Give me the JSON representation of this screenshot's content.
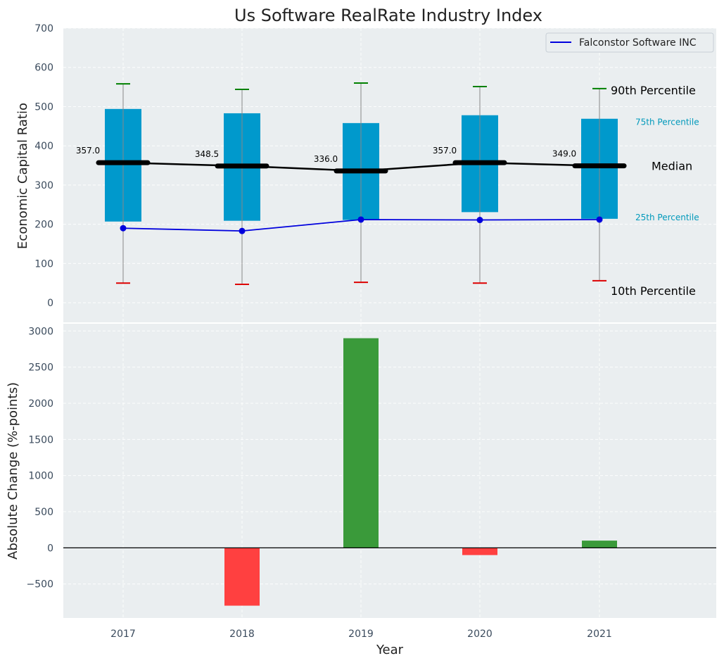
{
  "chart_data": [
    {
      "type": "box",
      "title": "Us Software RealRate Industry Index",
      "ylabel": "Economic Capital Ratio",
      "ylim": [
        -50,
        700
      ],
      "yticks": [
        0,
        100,
        200,
        300,
        400,
        500,
        600,
        700
      ],
      "categories": [
        "2017",
        "2018",
        "2019",
        "2020",
        "2021"
      ],
      "p10": [
        50,
        47,
        52,
        50,
        56
      ],
      "p25": [
        207,
        209,
        211,
        231,
        214
      ],
      "median": [
        357.0,
        348.5,
        336.0,
        357.0,
        349.0
      ],
      "median_labels": [
        "357.0",
        "348.5",
        "336.0",
        "357.0",
        "349.0"
      ],
      "p75": [
        494,
        483,
        458,
        478,
        469
      ],
      "p90": [
        558,
        544,
        560,
        551,
        546
      ],
      "company": {
        "name": "Falconstor Software INC",
        "values": [
          190,
          183,
          212,
          211,
          212
        ]
      },
      "annotations": {
        "p90": "90th Percentile",
        "p75": "75th Percentile",
        "median": "Median",
        "p25": "25th Percentile",
        "p10": "10th Percentile"
      },
      "legend_position": "top-right",
      "grid": true
    },
    {
      "type": "bar",
      "xlabel": "Year",
      "ylabel": "Absolute Change (%-points)",
      "ylim": [
        -970,
        3100
      ],
      "yticks": [
        -500,
        0,
        500,
        1000,
        1500,
        2000,
        2500,
        3000
      ],
      "ytick_labels": [
        "−500",
        "0",
        "500",
        "1000",
        "1500",
        "2000",
        "2500",
        "3000"
      ],
      "categories": [
        "2017",
        "2018",
        "2019",
        "2020",
        "2021"
      ],
      "values": [
        0,
        -800,
        2900,
        -100,
        100
      ],
      "colors": {
        "positive": "#3a9a3a",
        "negative": "#ff4040"
      },
      "grid": true
    }
  ],
  "colors": {
    "panel_bg": "#eaeef0",
    "box": "#0099cc",
    "median_line": "#000000",
    "company_line": "#0000dd",
    "p90_cap": "#008000",
    "p10_cap": "#dd0000",
    "whisker": "#888888",
    "annotation_small": "#0099bb"
  }
}
